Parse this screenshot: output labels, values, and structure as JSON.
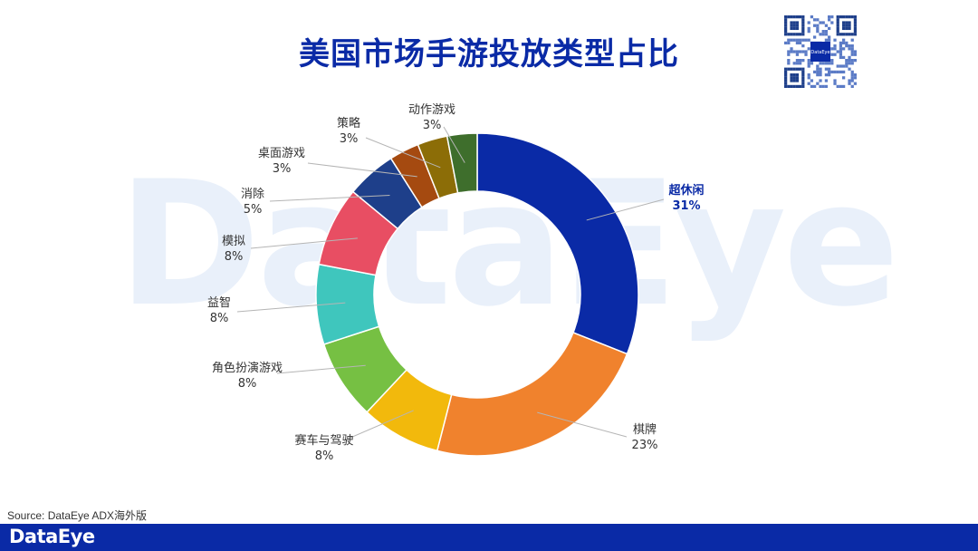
{
  "title": "美国市场手游投放类型占比",
  "watermark_text": "DataEye",
  "source": "Source: DataEye ADX海外版",
  "footer_logo": "DataEye",
  "qr_center_text": "DataEye",
  "chart_data": {
    "type": "pie",
    "variant": "donut",
    "title": "美国市场手游投放类型占比",
    "slices": [
      {
        "label": "超休闲",
        "pct_text": "31%",
        "value": 31,
        "color": "#0a2aa6",
        "emphasis": true
      },
      {
        "label": "棋牌",
        "pct_text": "23%",
        "value": 23,
        "color": "#f0822d"
      },
      {
        "label": "赛车与驾驶",
        "pct_text": "8%",
        "value": 8,
        "color": "#f2b90c"
      },
      {
        "label": "角色扮演游戏",
        "pct_text": "8%",
        "value": 8,
        "color": "#76c043"
      },
      {
        "label": "益智",
        "pct_text": "8%",
        "value": 8,
        "color": "#3fc6bd"
      },
      {
        "label": "模拟",
        "pct_text": "8%",
        "value": 8,
        "color": "#e84e63"
      },
      {
        "label": "消除",
        "pct_text": "5%",
        "value": 5,
        "color": "#1e3f8a"
      },
      {
        "label": "桌面游戏",
        "pct_text": "3%",
        "value": 3,
        "color": "#a54a10"
      },
      {
        "label": "策略",
        "pct_text": "3%",
        "value": 3,
        "color": "#8c6d07"
      },
      {
        "label": "动作游戏",
        "pct_text": "3%",
        "value": 3,
        "color": "#3e6e2c"
      }
    ]
  }
}
